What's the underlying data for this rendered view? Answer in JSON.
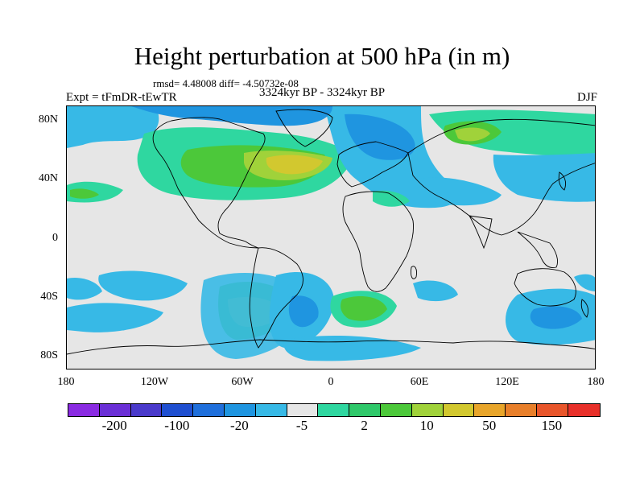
{
  "title": "Height perturbation at 500 hPa (in m)",
  "stats": "rmsd= 4.48008 diff= -4.50732e-08",
  "subtitle": "3324kyr BP - 3324kyr BP",
  "left_label": "Expt = tFmDR-tEwTR",
  "right_label": "DJF",
  "y_axis": {
    "ticks": [
      "80N",
      "40N",
      "0",
      "40S",
      "80S"
    ]
  },
  "x_axis": {
    "ticks": [
      "180",
      "120W",
      "60W",
      "0",
      "60E",
      "120E",
      "180"
    ]
  },
  "colorbar": {
    "colors": [
      "#8a2be2",
      "#6a2fd6",
      "#4a3acb",
      "#1f4fd0",
      "#1f6fdb",
      "#1f95e0",
      "#37b9e6",
      "#e6e6e6",
      "#2fd7a0",
      "#2fc86a",
      "#4cc83a",
      "#a0d23a",
      "#d2c82f",
      "#e8a52a",
      "#e87f2a",
      "#e8552a",
      "#e8302a"
    ],
    "labels": [
      "-200",
      "-100",
      "-20",
      "-5",
      "2",
      "10",
      "50",
      "150"
    ],
    "label_positions": [
      1,
      3,
      5,
      7,
      9,
      11,
      13,
      15
    ]
  },
  "map": {
    "background": "#e6e6e6",
    "palette": {
      "light_blue": "#37b9e6",
      "blue": "#1f95e0",
      "dark_blue": "#1f6fdb",
      "aqua_green": "#2fd7a0",
      "green": "#4cc83a",
      "yellow_green": "#a0d23a",
      "yellow": "#d2c82f"
    }
  }
}
